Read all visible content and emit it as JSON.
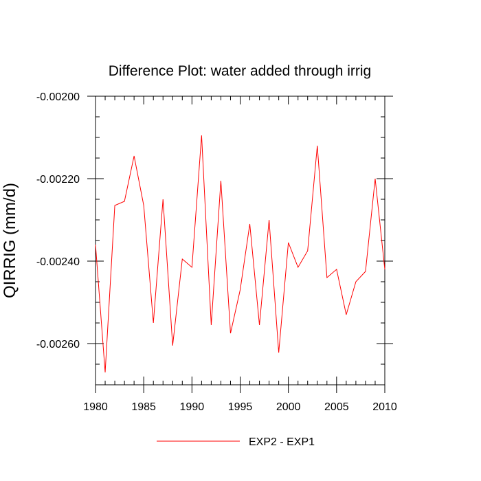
{
  "chart_data": {
    "type": "line",
    "title": "Difference Plot: water added through irrig",
    "xlabel": "",
    "ylabel": "QIRRIG  (mm/d)",
    "xlim": [
      1980,
      2010
    ],
    "ylim": [
      -0.0027,
      -0.002
    ],
    "xticks": [
      1980,
      1985,
      1990,
      1995,
      2000,
      2005,
      2010
    ],
    "xtick_labels": [
      "1980",
      "1985",
      "1990",
      "1995",
      "2000",
      "2005",
      "2010"
    ],
    "yticks": [
      -0.002,
      -0.0022,
      -0.0024,
      -0.0026
    ],
    "ytick_labels": [
      "-0.00200",
      "-0.00220",
      "-0.00240",
      "-0.00260"
    ],
    "grid": false,
    "legend_position": "bottom",
    "series": [
      {
        "name": "EXP2 - EXP1",
        "color": "#ff0000",
        "x": [
          1980,
          1981,
          1982,
          1983,
          1984,
          1985,
          1986,
          1987,
          1988,
          1989,
          1990,
          1991,
          1992,
          1993,
          1994,
          1995,
          1996,
          1997,
          1998,
          1999,
          2000,
          2001,
          2002,
          2003,
          2004,
          2005,
          2006,
          2007,
          2008,
          2009,
          2010
        ],
        "values": [
          -0.00236,
          -0.00267,
          -0.002265,
          -0.002255,
          -0.002145,
          -0.002265,
          -0.00255,
          -0.00225,
          -0.002605,
          -0.002395,
          -0.002415,
          -0.002095,
          -0.002555,
          -0.002205,
          -0.002575,
          -0.00247,
          -0.00231,
          -0.002555,
          -0.0023,
          -0.002622,
          -0.002355,
          -0.002415,
          -0.002375,
          -0.00212,
          -0.00244,
          -0.00242,
          -0.00253,
          -0.00245,
          -0.002425,
          -0.0022,
          -0.00242
        ]
      }
    ]
  }
}
